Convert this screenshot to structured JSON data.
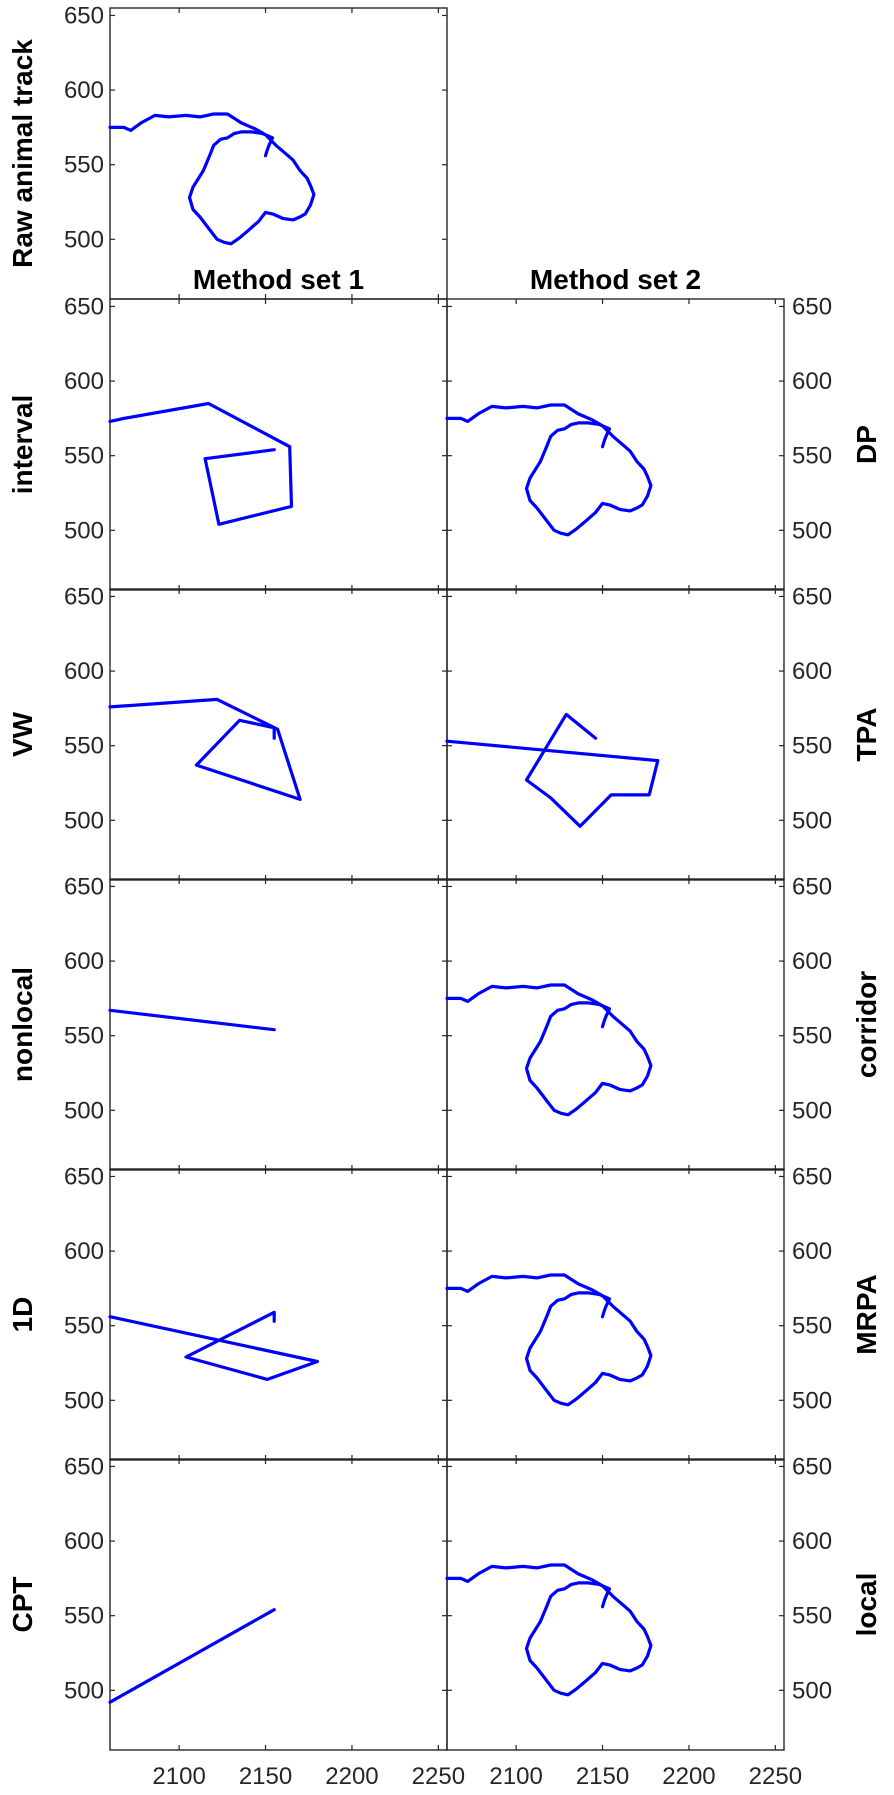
{
  "chart_data": {
    "type": "line",
    "layout": "grid",
    "columns": [
      {
        "title": ""
      },
      {
        "title": "Method set 1"
      },
      {
        "title": "Method set 2"
      }
    ],
    "color": "#0000ff",
    "xlim": [
      2060,
      2255
    ],
    "xticks": [
      "2100",
      "2150",
      "2200",
      "2250"
    ],
    "xtick_values": [
      2100,
      2150,
      2200,
      2250
    ],
    "ylim": [
      460,
      655
    ],
    "yticks": [
      "650",
      "600",
      "550",
      "500"
    ],
    "ytick_values": [
      650,
      600,
      550,
      500
    ],
    "raw_track": {
      "label": "Raw animal track",
      "x": [
        2060,
        2068,
        2072,
        2078,
        2086,
        2094,
        2104,
        2112,
        2120,
        2128,
        2136,
        2144,
        2150,
        2156,
        2162,
        2166,
        2170,
        2174,
        2176,
        2178,
        2176,
        2173,
        2170,
        2166,
        2160,
        2154,
        2150,
        2146,
        2140,
        2135,
        2130,
        2126,
        2122,
        2118,
        2112,
        2108,
        2106,
        2108,
        2114,
        2118,
        2120,
        2124,
        2128,
        2132,
        2136,
        2142,
        2148,
        2154,
        2152,
        2151,
        2150
      ],
      "y": [
        575,
        575,
        573,
        578,
        583,
        582,
        583,
        582,
        584,
        584,
        578,
        574,
        570,
        563,
        557,
        553,
        546,
        541,
        536,
        530,
        523,
        517,
        515,
        513,
        514,
        517,
        518,
        512,
        506,
        501,
        497,
        498,
        500,
        506,
        515,
        520,
        528,
        535,
        546,
        557,
        563,
        567,
        568,
        571,
        572,
        572,
        571,
        568,
        563,
        560,
        556
      ]
    },
    "panels": [
      {
        "column": 1,
        "row": 1,
        "label": "interval",
        "label_side": "left",
        "x": [
          2060,
          2068,
          2117,
          2164,
          2165,
          2123,
          2115,
          2155
        ],
        "y": [
          573,
          575,
          585,
          556,
          516,
          504,
          548,
          554
        ]
      },
      {
        "column": 2,
        "row": 1,
        "label": "DP",
        "label_side": "right",
        "same_as_raw": true
      },
      {
        "column": 1,
        "row": 2,
        "label": "VW",
        "label_side": "left",
        "x": [
          2060,
          2122,
          2157,
          2170,
          2110,
          2135,
          2155,
          2155
        ],
        "y": [
          576,
          581,
          561,
          514,
          537,
          567,
          562,
          555
        ]
      },
      {
        "column": 2,
        "row": 2,
        "label": "TPA",
        "label_side": "right",
        "x": [
          2060,
          2182,
          2177,
          2155,
          2137,
          2120,
          2106,
          2129,
          2146
        ],
        "y": [
          553,
          540,
          517,
          517,
          496,
          515,
          527,
          571,
          555
        ]
      },
      {
        "column": 1,
        "row": 3,
        "label": "nonlocal",
        "label_side": "left",
        "x": [
          2060,
          2155
        ],
        "y": [
          567,
          554
        ]
      },
      {
        "column": 2,
        "row": 3,
        "label": "corridor",
        "label_side": "right",
        "same_as_raw": true
      },
      {
        "column": 1,
        "row": 4,
        "label": "1D",
        "label_side": "left",
        "x": [
          2060,
          2180,
          2151,
          2104,
          2155,
          2155
        ],
        "y": [
          556,
          526,
          514,
          529,
          559,
          553
        ]
      },
      {
        "column": 2,
        "row": 4,
        "label": "MRPA",
        "label_side": "right",
        "same_as_raw": true
      },
      {
        "column": 1,
        "row": 5,
        "label": "CPT",
        "label_side": "left",
        "x": [
          2060,
          2155
        ],
        "y": [
          492,
          554
        ]
      },
      {
        "column": 2,
        "row": 5,
        "label": "local",
        "label_side": "right",
        "same_as_raw": true
      }
    ]
  }
}
